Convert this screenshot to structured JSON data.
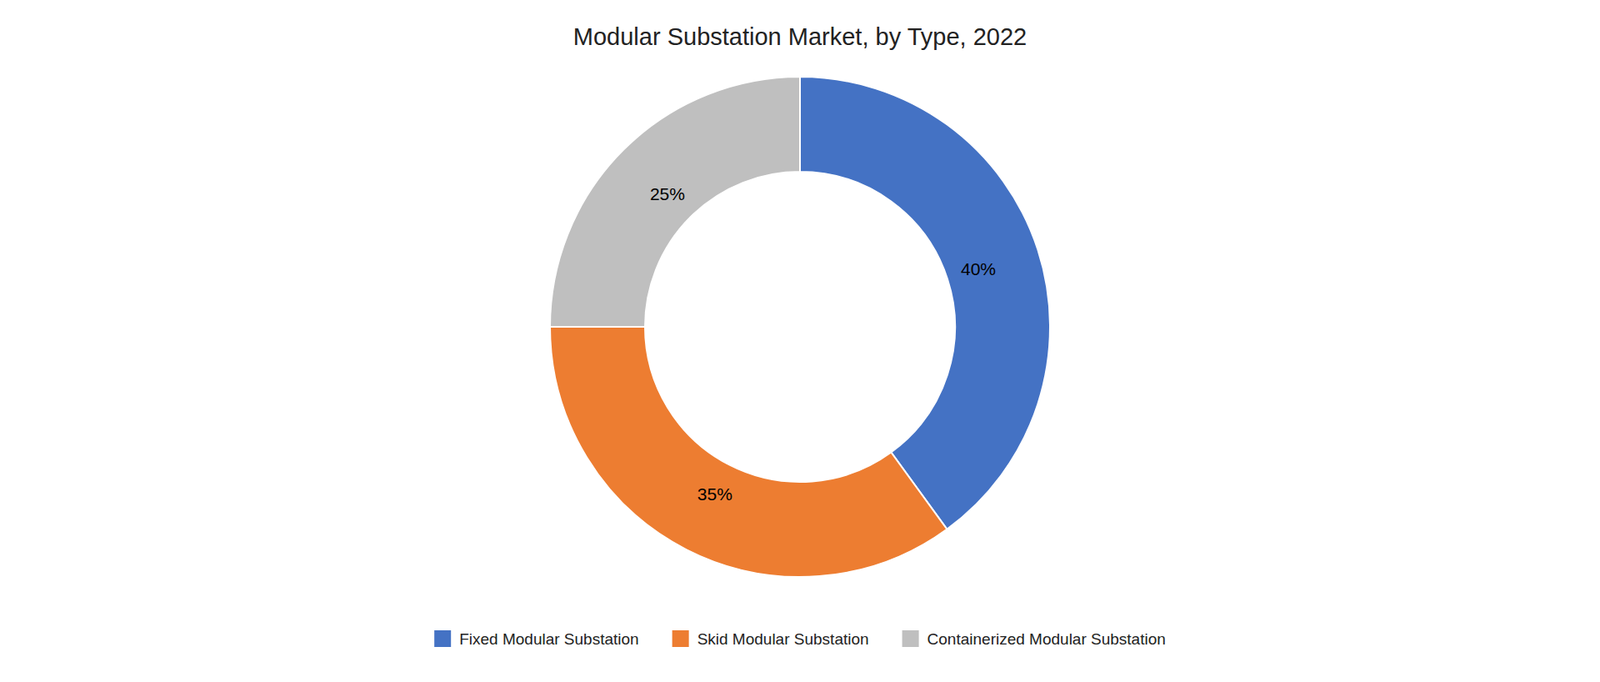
{
  "chart_data": {
    "type": "donut",
    "title": "Modular Substation Market, by Type, 2022",
    "categories": [
      "Fixed Modular Substation",
      "Skid Modular Substation",
      "Containerized Modular Substation"
    ],
    "values": [
      40,
      35,
      25
    ],
    "value_labels": [
      "40%",
      "35%",
      "25%"
    ],
    "colors": [
      "#4472C4",
      "#ED7D31",
      "#BFBFBF"
    ],
    "data_labels": true,
    "legend": "bottom"
  }
}
